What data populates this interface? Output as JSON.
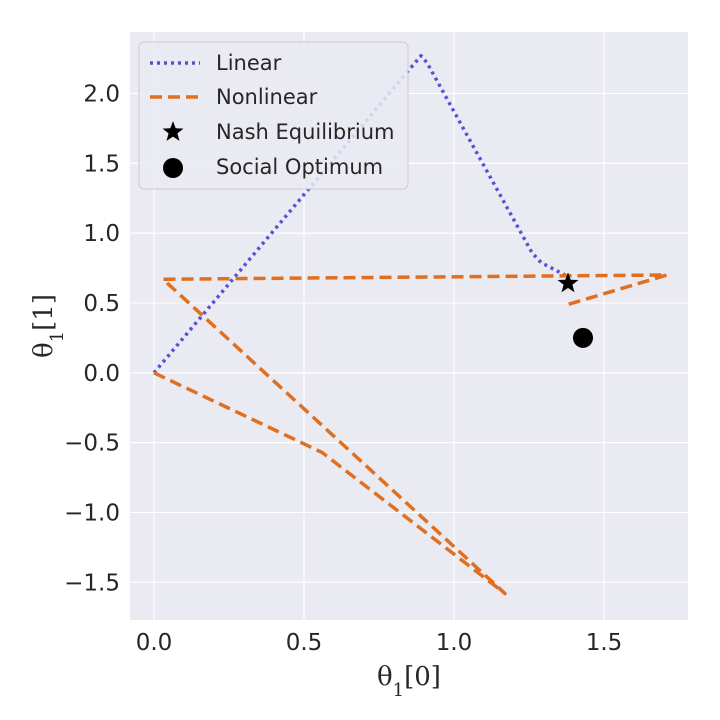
{
  "chart_data": {
    "type": "line",
    "title": "",
    "xlabel": "θ₁[0]",
    "ylabel": "θ₁[1]",
    "xlim": [
      -0.08,
      1.78
    ],
    "ylim": [
      -1.77,
      2.44
    ],
    "xticks": [
      0.0,
      0.5,
      1.0,
      1.5
    ],
    "xtick_labels": [
      "0.0",
      "0.5",
      "1.0",
      "1.5"
    ],
    "yticks": [
      -1.5,
      -1.0,
      -0.5,
      0.0,
      0.5,
      1.0,
      1.5,
      2.0
    ],
    "ytick_labels": [
      "−1.5",
      "−1.0",
      "−0.5",
      "0.0",
      "0.5",
      "1.0",
      "1.5",
      "2.0"
    ],
    "grid": true,
    "legend_position": "top-left",
    "series": [
      {
        "name": "Linear",
        "style": "dotted",
        "color": "#5b4fd6",
        "x": [
          0.0,
          0.89,
          0.91,
          1.26,
          1.29,
          1.37
        ],
        "y": [
          0.0,
          2.27,
          2.22,
          0.86,
          0.79,
          0.7
        ]
      },
      {
        "name": "Nonlinear",
        "style": "dashed",
        "color": "#e07020",
        "x": [
          0.0,
          0.56,
          1.17,
          0.03,
          0.05,
          1.71,
          1.38
        ],
        "y": [
          0.0,
          -0.57,
          -1.58,
          0.67,
          0.67,
          0.7,
          0.49
        ]
      }
    ],
    "markers": [
      {
        "name": "Nash Equilibrium",
        "symbol": "star",
        "color": "#000000",
        "x": 1.38,
        "y": 0.64
      },
      {
        "name": "Social Optimum",
        "symbol": "circle",
        "color": "#000000",
        "x": 1.43,
        "y": 0.25
      }
    ],
    "legend": [
      "Linear",
      "Nonlinear",
      "Nash Equilibrium",
      "Social Optimum"
    ]
  }
}
